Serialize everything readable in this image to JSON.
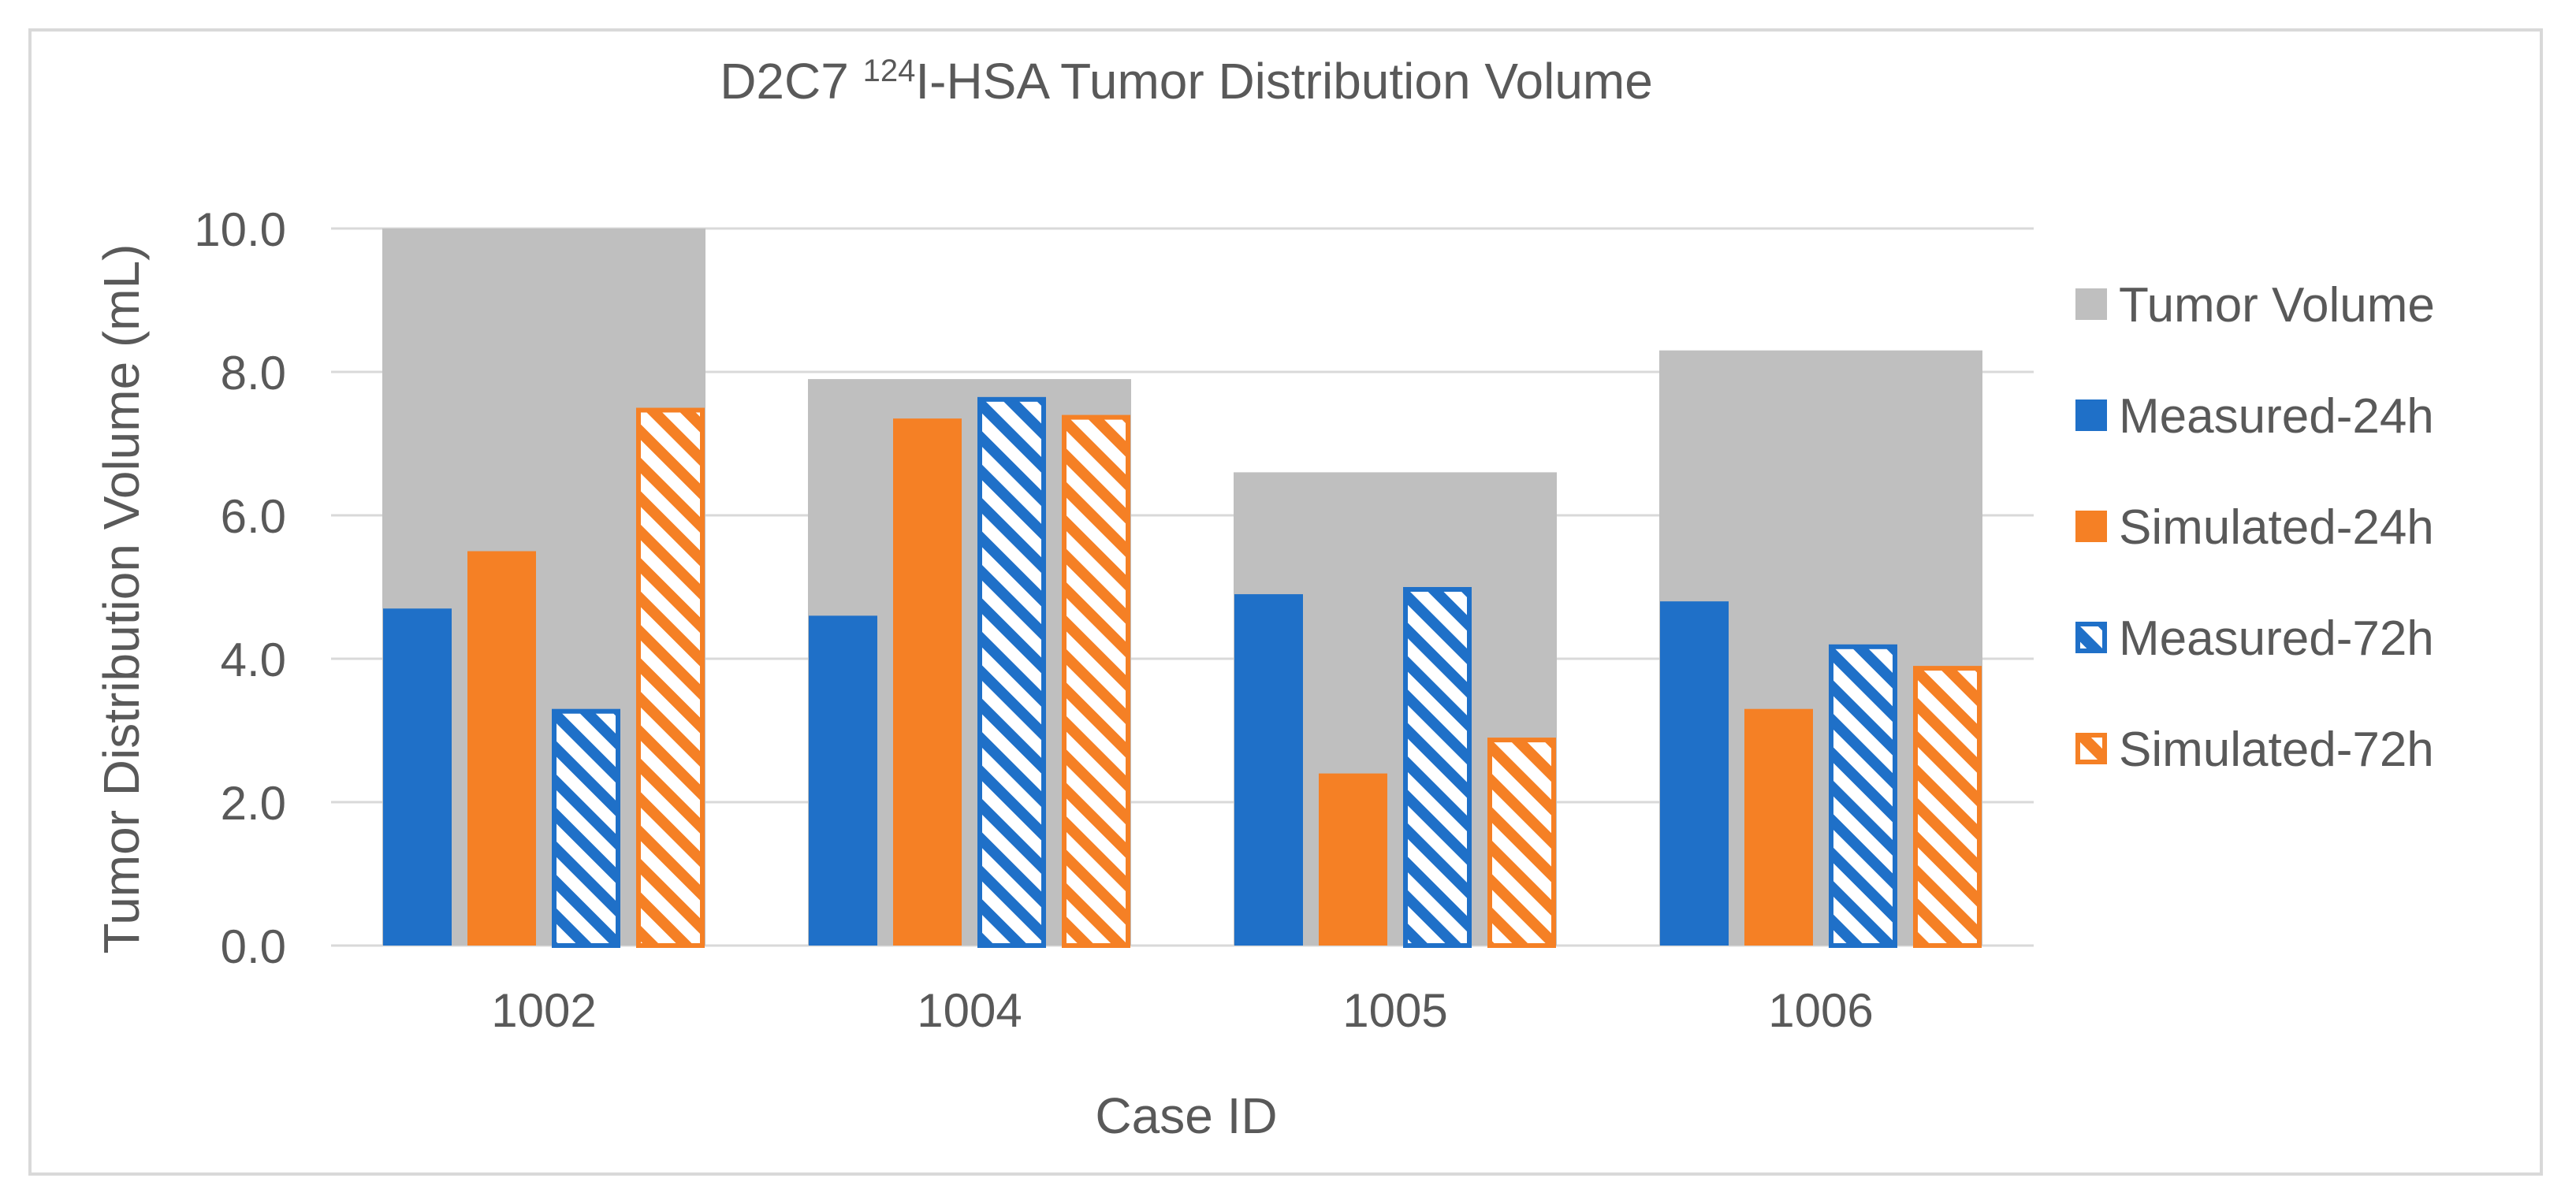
{
  "chart_data": {
    "type": "bar",
    "title": {
      "prefix": "D2C7 ",
      "superscript": "124",
      "suffix": "I-HSA Tumor Distribution Volume"
    },
    "xlabel": "Case ID",
    "ylabel": "Tumor Distribution Volume (mL)",
    "ylim": [
      0,
      10
    ],
    "yticks": [
      "0.0",
      "2.0",
      "4.0",
      "6.0",
      "8.0",
      "10.0"
    ],
    "grid": true,
    "legend_position": "right",
    "categories": [
      "1002",
      "1004",
      "1005",
      "1006"
    ],
    "background_series": {
      "name": "Tumor Volume",
      "color": "#bfbfbf",
      "values": [
        10.0,
        7.9,
        6.6,
        8.3
      ]
    },
    "series": [
      {
        "name": "Measured-24h",
        "color": "#1f70c8",
        "pattern": "solid",
        "values": [
          4.7,
          4.6,
          4.9,
          4.8
        ]
      },
      {
        "name": "Simulated-24h",
        "color": "#f58025",
        "pattern": "solid",
        "values": [
          5.5,
          7.35,
          2.4,
          3.3
        ]
      },
      {
        "name": "Measured-72h",
        "color": "#1f70c8",
        "pattern": "hatched",
        "values": [
          3.3,
          7.65,
          5.0,
          4.2
        ]
      },
      {
        "name": "Simulated-72h",
        "color": "#f58025",
        "pattern": "hatched",
        "values": [
          7.5,
          7.4,
          2.9,
          3.9
        ]
      }
    ]
  }
}
